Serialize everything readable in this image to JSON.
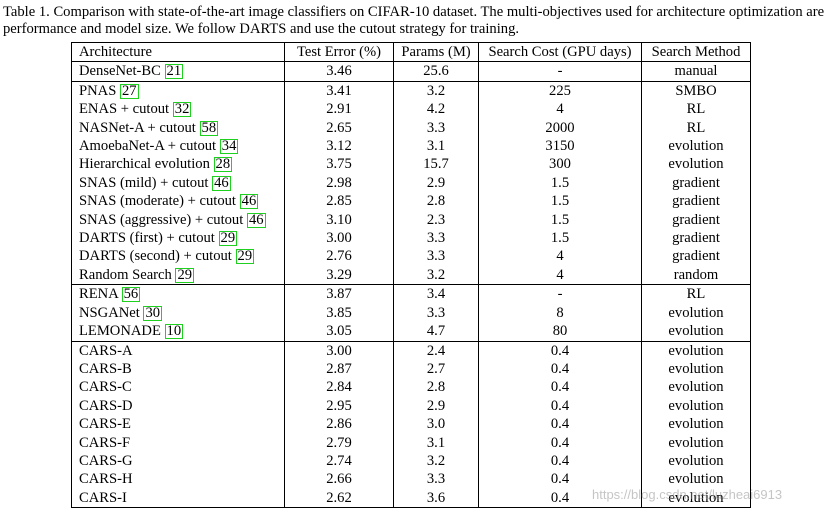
{
  "caption": "Table 1. Comparison with state-of-the-art image classifiers on CIFAR-10 dataset. The multi-objectives used for architecture optimization are performance and model size. We follow DARTS and use the cutout strategy for training.",
  "columns": [
    "Architecture",
    "Test Error (%)",
    "Params (M)",
    "Search Cost (GPU days)",
    "Search Method"
  ],
  "groups": [
    [
      {
        "name": "DenseNet-BC",
        "cite": "21",
        "error": "3.46",
        "params": "25.6",
        "cost": "-",
        "method": "manual"
      }
    ],
    [
      {
        "name": "PNAS",
        "cite": "27",
        "error": "3.41",
        "params": "3.2",
        "cost": "225",
        "method": "SMBO"
      },
      {
        "name": "ENAS + cutout",
        "cite": "32",
        "error": "2.91",
        "params": "4.2",
        "cost": "4",
        "method": "RL"
      },
      {
        "name": "NASNet-A + cutout",
        "cite": "58",
        "error": "2.65",
        "params": "3.3",
        "cost": "2000",
        "method": "RL"
      },
      {
        "name": "AmoebaNet-A + cutout",
        "cite": "34",
        "error": "3.12",
        "params": "3.1",
        "cost": "3150",
        "method": "evolution"
      },
      {
        "name": "Hierarchical evolution",
        "cite": "28",
        "error": "3.75",
        "params": "15.7",
        "cost": "300",
        "method": "evolution"
      },
      {
        "name": "SNAS (mild) + cutout",
        "cite": "46",
        "error": "2.98",
        "params": "2.9",
        "cost": "1.5",
        "method": "gradient"
      },
      {
        "name": "SNAS (moderate) + cutout",
        "cite": "46",
        "error": "2.85",
        "params": "2.8",
        "cost": "1.5",
        "method": "gradient"
      },
      {
        "name": "SNAS (aggressive) + cutout",
        "cite": "46",
        "error": "3.10",
        "params": "2.3",
        "cost": "1.5",
        "method": "gradient"
      },
      {
        "name": "DARTS (first) + cutout",
        "cite": "29",
        "error": "3.00",
        "params": "3.3",
        "cost": "1.5",
        "method": "gradient"
      },
      {
        "name": "DARTS (second) + cutout",
        "cite": "29",
        "error": "2.76",
        "params": "3.3",
        "cost": "4",
        "method": "gradient"
      },
      {
        "name": "Random Search",
        "cite": "29",
        "error": "3.29",
        "params": "3.2",
        "cost": "4",
        "method": "random"
      }
    ],
    [
      {
        "name": "RENA",
        "cite": "56",
        "error": "3.87",
        "params": "3.4",
        "cost": "-",
        "method": "RL"
      },
      {
        "name": "NSGANet",
        "cite": "30",
        "error": "3.85",
        "params": "3.3",
        "cost": "8",
        "method": "evolution"
      },
      {
        "name": "LEMONADE",
        "cite": "10",
        "error": "3.05",
        "params": "4.7",
        "cost": "80",
        "method": "evolution"
      }
    ],
    [
      {
        "name": "CARS-A",
        "cite": "",
        "error": "3.00",
        "params": "2.4",
        "cost": "0.4",
        "method": "evolution"
      },
      {
        "name": "CARS-B",
        "cite": "",
        "error": "2.87",
        "params": "2.7",
        "cost": "0.4",
        "method": "evolution"
      },
      {
        "name": "CARS-C",
        "cite": "",
        "error": "2.84",
        "params": "2.8",
        "cost": "0.4",
        "method": "evolution"
      },
      {
        "name": "CARS-D",
        "cite": "",
        "error": "2.95",
        "params": "2.9",
        "cost": "0.4",
        "method": "evolution"
      },
      {
        "name": "CARS-E",
        "cite": "",
        "error": "2.86",
        "params": "3.0",
        "cost": "0.4",
        "method": "evolution"
      },
      {
        "name": "CARS-F",
        "cite": "",
        "error": "2.79",
        "params": "3.1",
        "cost": "0.4",
        "method": "evolution"
      },
      {
        "name": "CARS-G",
        "cite": "",
        "error": "2.74",
        "params": "3.2",
        "cost": "0.4",
        "method": "evolution"
      },
      {
        "name": "CARS-H",
        "cite": "",
        "error": "2.66",
        "params": "3.3",
        "cost": "0.4",
        "method": "evolution"
      },
      {
        "name": "CARS-I",
        "cite": "",
        "error": "2.62",
        "params": "3.6",
        "cost": "0.4",
        "method": "evolution"
      }
    ]
  ],
  "watermark": "https://blog.csdn.net/luzheai6913",
  "cite_box_color": "#1ed11e"
}
